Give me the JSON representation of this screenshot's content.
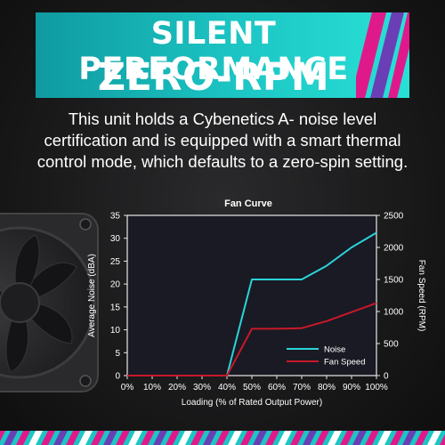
{
  "header": {
    "title_line1": "SILENT PERFORMANCE",
    "title_line2": "ZERO-RPM MODE"
  },
  "description": {
    "line1": "This unit holds a Cybenetics A- noise level",
    "line2": "certification and is equipped with a smart thermal",
    "line3": "control mode, which defaults to a zero-spin setting."
  },
  "colors": {
    "banner_teal": "#1cc6c4",
    "accent_magenta": "#e0198a",
    "accent_purple": "#6a3fb5",
    "noise_line": "#2ad4d8",
    "fan_line": "#c8182a",
    "plot_bg": "#1a1a24"
  },
  "chart_data": {
    "type": "line",
    "title": "Fan Curve",
    "xlabel": "Loading (% of Rated Output Power)",
    "ylabel": "Average Noise (dBA)",
    "y2label": "Fan Speed (RPM)",
    "x": [
      0,
      10,
      20,
      30,
      40,
      50,
      60,
      70,
      80,
      90,
      100
    ],
    "x_tick_labels": [
      "0%",
      "10%",
      "20%",
      "30%",
      "40%",
      "50%",
      "60%",
      "70%",
      "80%",
      "90%",
      "100%"
    ],
    "ylim": [
      0,
      35
    ],
    "y_ticks": [
      0,
      5,
      10,
      15,
      20,
      25,
      30,
      35
    ],
    "y2lim": [
      0,
      2500
    ],
    "y2_ticks": [
      0,
      500,
      1000,
      1500,
      2000,
      2500
    ],
    "series": [
      {
        "name": "Noise",
        "axis": "left",
        "color": "#2ad4d8",
        "values": [
          0,
          0,
          0,
          0,
          0,
          21,
          21,
          21,
          24,
          28,
          31.2
        ]
      },
      {
        "name": "Fan Speed",
        "axis": "right",
        "color": "#c8182a",
        "values": [
          0,
          0,
          0,
          0,
          0,
          730,
          730,
          740,
          850,
          990,
          1130
        ]
      }
    ],
    "legend": "bottom-right",
    "grid": false
  }
}
